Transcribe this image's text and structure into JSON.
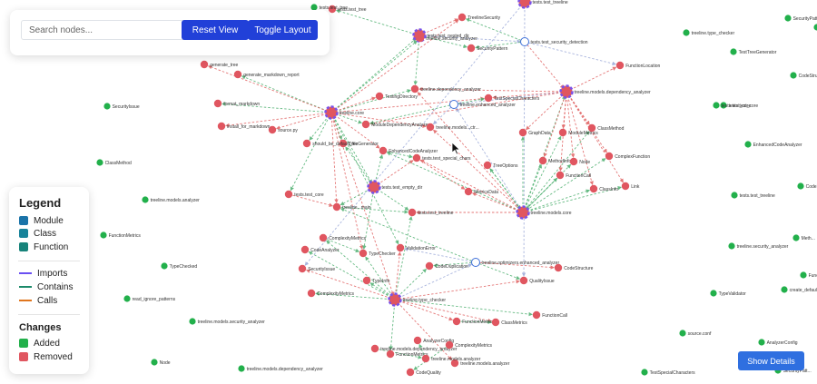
{
  "controls": {
    "search_placeholder": "Search nodes...",
    "reset_label": "Reset View",
    "toggle_label": "Toggle Layout"
  },
  "legend": {
    "title": "Legend",
    "node_types": [
      {
        "label": "Module",
        "color": "#1a73a8"
      },
      {
        "label": "Class",
        "color": "#18839a"
      },
      {
        "label": "Function",
        "color": "#17837a"
      }
    ],
    "edge_types": [
      {
        "label": "Imports",
        "color": "#6a4ff2"
      },
      {
        "label": "Contains",
        "color": "#1c8a6a"
      },
      {
        "label": "Calls",
        "color": "#e0761e"
      }
    ],
    "changes_title": "Changes",
    "changes": [
      {
        "label": "Added",
        "color": "#22b04b"
      },
      {
        "label": "Removed",
        "color": "#e05660"
      }
    ]
  },
  "details_button": "Show Details",
  "colors": {
    "added": "#22b04b",
    "removed": "#e05660",
    "edge_green": "#4caf6e",
    "edge_red": "#e06060",
    "edge_blue": "#9aa8d8",
    "hub_purple": "#7a52e8",
    "accent_button": "#2140d8"
  },
  "graph": {
    "nodes": [
      {
        "id": "h1",
        "label": "treeline.core",
        "type": "hub"
      },
      {
        "id": "h2",
        "label": "tests.test_empty_dir",
        "type": "hub"
      },
      {
        "id": "h3",
        "label": "treeline.models.core",
        "type": "hub"
      },
      {
        "id": "h4",
        "label": "treeline.models.dependency_analyzer",
        "type": "hub"
      },
      {
        "id": "h5",
        "label": "treeline.type_checker",
        "type": "hub"
      },
      {
        "id": "h6",
        "label": "tests.test_nested_dir",
        "type": "hub"
      },
      {
        "id": "h7",
        "label": "tests.test_treeline",
        "type": "hub"
      },
      {
        "id": "w1",
        "label": "tests.test_security_detection",
        "type": "white"
      },
      {
        "id": "w2",
        "label": "treeline.enhanced_analyzer",
        "type": "white"
      },
      {
        "id": "w3",
        "label": "treeline.optimizers.enhanced_analyzer",
        "type": "white"
      },
      {
        "id": "r1",
        "label": "TreelineSecurity",
        "type": "removed"
      },
      {
        "id": "r2",
        "label": "treeline.security_analyzer",
        "type": "removed"
      },
      {
        "id": "r3",
        "label": "SecurityPattern",
        "type": "removed"
      },
      {
        "id": "r4",
        "label": "tests.test_tree",
        "type": "removed"
      },
      {
        "id": "r5",
        "label": "treeline.dependency_analyzer",
        "type": "removed"
      },
      {
        "id": "r6",
        "label": "TestSpecialCharacters",
        "type": "removed"
      },
      {
        "id": "r7",
        "label": "TestingDirectory",
        "type": "removed"
      },
      {
        "id": "r8",
        "label": "ModuleDependencyAnalyzer",
        "type": "removed"
      },
      {
        "id": "r9",
        "label": "treeline.models...ctr...",
        "type": "removed"
      },
      {
        "id": "r10",
        "label": "EnhancedCodeAnalyzer",
        "type": "removed"
      },
      {
        "id": "r11",
        "label": "tests.test_special_chars",
        "type": "removed"
      },
      {
        "id": "r12",
        "label": "TreeOptions",
        "type": "removed"
      },
      {
        "id": "r13",
        "label": "TreeGenerator",
        "type": "removed"
      },
      {
        "id": "r14",
        "label": "source.py",
        "type": "removed"
      },
      {
        "id": "r15",
        "label": "install_for_markdown",
        "type": "removed"
      },
      {
        "id": "r16",
        "label": "format_markdown",
        "type": "removed"
      },
      {
        "id": "r17",
        "label": "generate_markdown_report",
        "type": "removed"
      },
      {
        "id": "r18",
        "label": "generate_tree",
        "type": "removed"
      },
      {
        "id": "r19",
        "label": "should_be_default_file",
        "type": "removed"
      },
      {
        "id": "r20",
        "label": "tests.test_core",
        "type": "removed"
      },
      {
        "id": "r21",
        "label": "treeline...main",
        "type": "removed"
      },
      {
        "id": "r22",
        "label": "tests.test_treeline",
        "type": "removed"
      },
      {
        "id": "r23",
        "label": "ComplexityMetrics",
        "type": "removed"
      },
      {
        "id": "r24",
        "label": "GraphData",
        "type": "removed"
      },
      {
        "id": "r25",
        "label": "ModuleMetrics",
        "type": "removed"
      },
      {
        "id": "r26",
        "label": "ClassMethod",
        "type": "removed"
      },
      {
        "id": "r27",
        "label": "MethodInfo",
        "type": "removed"
      },
      {
        "id": "r28",
        "label": "Node",
        "type": "removed"
      },
      {
        "id": "r29",
        "label": "ComplexFunction",
        "type": "removed"
      },
      {
        "id": "r30",
        "label": "FunctionCall",
        "type": "removed"
      },
      {
        "id": "r31",
        "label": "ClassInfo",
        "type": "removed"
      },
      {
        "id": "r32",
        "label": "Link",
        "type": "removed"
      },
      {
        "id": "r33",
        "label": "FunctionLocation",
        "type": "removed"
      },
      {
        "id": "r34",
        "label": "ValidationError",
        "type": "removed"
      },
      {
        "id": "r35",
        "label": "TypeChecker",
        "type": "removed"
      },
      {
        "id": "r36",
        "label": "CodeDuplication",
        "type": "removed"
      },
      {
        "id": "r37",
        "label": "CodeStructure",
        "type": "removed"
      },
      {
        "id": "r38",
        "label": "QualityIssue",
        "type": "removed"
      },
      {
        "id": "r39",
        "label": "FunctionMetrics",
        "type": "removed"
      },
      {
        "id": "r40",
        "label": "ClassMetrics",
        "type": "removed"
      },
      {
        "id": "r41",
        "label": "FunctionCall",
        "type": "removed"
      },
      {
        "id": "r42",
        "label": "treeline.models.analyzer",
        "type": "removed"
      },
      {
        "id": "r43",
        "label": "SecurityIssue",
        "type": "removed"
      },
      {
        "id": "r44",
        "label": "ComplexityMetrics",
        "type": "removed"
      },
      {
        "id": "r45",
        "label": "TypeInfo",
        "type": "removed"
      },
      {
        "id": "r46",
        "label": "CodeAnalyzer",
        "type": "removed"
      },
      {
        "id": "r47",
        "label": "MetricsData",
        "type": "removed"
      },
      {
        "id": "r48",
        "label": "FunctionMetrics",
        "type": "removed"
      },
      {
        "id": "r49",
        "label": "treeline.models.dependency_analyzer",
        "type": "removed"
      },
      {
        "id": "r50",
        "label": "treeline.models.analyzer",
        "type": "removed"
      },
      {
        "id": "r51",
        "label": "AnalyzerConfig",
        "type": "removed"
      },
      {
        "id": "r52",
        "label": "ComplexityMetrics",
        "type": "removed"
      },
      {
        "id": "r53",
        "label": "CodeQuality",
        "type": "removed"
      },
      {
        "id": "a1",
        "label": "treeline.type_checker",
        "type": "added"
      },
      {
        "id": "a2",
        "label": "TestTreeGenerator",
        "type": "added"
      },
      {
        "id": "a3",
        "label": "CodeStructure",
        "type": "added"
      },
      {
        "id": "a4",
        "label": "SecurityPattern",
        "type": "added"
      },
      {
        "id": "a5",
        "label": "TreelineSecurity",
        "type": "added"
      },
      {
        "id": "a6",
        "label": "tests.test_core",
        "type": "added"
      },
      {
        "id": "a7",
        "label": "EnhancedCodeAnalyzer",
        "type": "added"
      },
      {
        "id": "a8",
        "label": "SecurityIssue",
        "type": "added"
      },
      {
        "id": "a9",
        "label": "ClassMethod",
        "type": "added"
      },
      {
        "id": "a10",
        "label": "treeline.models.analyzer",
        "type": "added"
      },
      {
        "id": "a11",
        "label": "FunctionMetrics",
        "type": "added"
      },
      {
        "id": "a12",
        "label": "TypeChecked",
        "type": "added"
      },
      {
        "id": "a13",
        "label": "read_ignore_patterns",
        "type": "added"
      },
      {
        "id": "a14",
        "label": "treeline.models.security_analyzer",
        "type": "added"
      },
      {
        "id": "a15",
        "label": "Node",
        "type": "added"
      },
      {
        "id": "a16",
        "label": "treeline.models.dependency_analyzer",
        "type": "added"
      },
      {
        "id": "a17",
        "label": "tests.test_treeline",
        "type": "added"
      },
      {
        "id": "a18",
        "label": "treeline.security_analyzer",
        "type": "added"
      },
      {
        "id": "a19",
        "label": "TypeValidator",
        "type": "added"
      },
      {
        "id": "a20",
        "label": "create_default_ignore",
        "type": "added"
      },
      {
        "id": "a21",
        "label": "source.conf",
        "type": "added"
      },
      {
        "id": "a22",
        "label": "AnalyzerConfig",
        "type": "added"
      },
      {
        "id": "a23",
        "label": "TestSpecialCharacters",
        "type": "added"
      },
      {
        "id": "a24",
        "label": "SecurityPatt...",
        "type": "added"
      },
      {
        "id": "a25",
        "label": "Meth...",
        "type": "added"
      },
      {
        "id": "a26",
        "label": "CodeSh...",
        "type": "added"
      },
      {
        "id": "a27",
        "label": "Func...",
        "type": "added"
      },
      {
        "id": "a28",
        "label": "tests.test_tree",
        "type": "added"
      },
      {
        "id": "a29",
        "label": "tests.test_core",
        "type": "added"
      }
    ],
    "edges": [
      [
        "h1",
        "r5",
        "g"
      ],
      [
        "h1",
        "r7",
        "r"
      ],
      [
        "h1",
        "r8",
        "g"
      ],
      [
        "h1",
        "r13",
        "g"
      ],
      [
        "h1",
        "r14",
        "r"
      ],
      [
        "h1",
        "r15",
        "r"
      ],
      [
        "h1",
        "r16",
        "g"
      ],
      [
        "h1",
        "r17",
        "g"
      ],
      [
        "h1",
        "r18",
        "r"
      ],
      [
        "h1",
        "r19",
        "g"
      ],
      [
        "h1",
        "h2",
        "g"
      ],
      [
        "h1",
        "r21",
        "r"
      ],
      [
        "h1",
        "r6",
        "r"
      ],
      [
        "h1",
        "r2",
        "g"
      ],
      [
        "h1",
        "r9",
        "r"
      ],
      [
        "h1",
        "r10",
        "r"
      ],
      [
        "h1",
        "h5",
        "r"
      ],
      [
        "h1",
        "r34",
        "g"
      ],
      [
        "h1",
        "r35",
        "r"
      ],
      [
        "h1",
        "r20",
        "g"
      ],
      [
        "h1",
        "h6",
        "g"
      ],
      [
        "h1",
        "r1",
        "r"
      ],
      [
        "h2",
        "r11",
        "r"
      ],
      [
        "h2",
        "r21",
        "g"
      ],
      [
        "h2",
        "r22",
        "g"
      ],
      [
        "h2",
        "r10",
        "g"
      ],
      [
        "h2",
        "r35",
        "g"
      ],
      [
        "h2",
        "r13",
        "g"
      ],
      [
        "h3",
        "r9",
        "r"
      ],
      [
        "h3",
        "r10",
        "g"
      ],
      [
        "h3",
        "r11",
        "r"
      ],
      [
        "h3",
        "r12",
        "g"
      ],
      [
        "h3",
        "r24",
        "g"
      ],
      [
        "h3",
        "r25",
        "g"
      ],
      [
        "h3",
        "r26",
        "g"
      ],
      [
        "h3",
        "r27",
        "g"
      ],
      [
        "h3",
        "r28",
        "g"
      ],
      [
        "h3",
        "r29",
        "g"
      ],
      [
        "h3",
        "r30",
        "g"
      ],
      [
        "h3",
        "r31",
        "g"
      ],
      [
        "h3",
        "r32",
        "g"
      ],
      [
        "h3",
        "r22",
        "r"
      ],
      [
        "h3",
        "w2",
        "b"
      ],
      [
        "h3",
        "r47",
        "r"
      ],
      [
        "h3",
        "h4",
        "g"
      ],
      [
        "h3",
        "r5",
        "r"
      ],
      [
        "h4",
        "r5",
        "r"
      ],
      [
        "h4",
        "r6",
        "r"
      ],
      [
        "h4",
        "r24",
        "r"
      ],
      [
        "h4",
        "r25",
        "r"
      ],
      [
        "h4",
        "r26",
        "r"
      ],
      [
        "h4",
        "r27",
        "r"
      ],
      [
        "h4",
        "r28",
        "r"
      ],
      [
        "h4",
        "r29",
        "r"
      ],
      [
        "h4",
        "r30",
        "r"
      ],
      [
        "h4",
        "r31",
        "r"
      ],
      [
        "h4",
        "r32",
        "r"
      ],
      [
        "h4",
        "r33",
        "r"
      ],
      [
        "h4",
        "w2",
        "b"
      ],
      [
        "h4",
        "r8",
        "r"
      ],
      [
        "h5",
        "r39",
        "r"
      ],
      [
        "h5",
        "r40",
        "r"
      ],
      [
        "h5",
        "r41",
        "g"
      ],
      [
        "h5",
        "r42",
        "r"
      ],
      [
        "h5",
        "r44",
        "g"
      ],
      [
        "h5",
        "r45",
        "g"
      ],
      [
        "h5",
        "r46",
        "g"
      ],
      [
        "h5",
        "r48",
        "g"
      ],
      [
        "h5",
        "r35",
        "g"
      ],
      [
        "h5",
        "r34",
        "r"
      ],
      [
        "h5",
        "r36",
        "g"
      ],
      [
        "h5",
        "w3",
        "b"
      ],
      [
        "h5",
        "r23",
        "g"
      ],
      [
        "h5",
        "r43",
        "r"
      ],
      [
        "h5",
        "r38",
        "r"
      ],
      [
        "h5",
        "r22",
        "g"
      ],
      [
        "h6",
        "r1",
        "r"
      ],
      [
        "h6",
        "r2",
        "g"
      ],
      [
        "h6",
        "r3",
        "g"
      ],
      [
        "h6",
        "w1",
        "b"
      ],
      [
        "h6",
        "r4",
        "g"
      ],
      [
        "h6",
        "r5",
        "g"
      ],
      [
        "w1",
        "r1",
        "g"
      ],
      [
        "w1",
        "r3",
        "g"
      ],
      [
        "w1",
        "h4",
        "r"
      ],
      [
        "w1",
        "r33",
        "b"
      ],
      [
        "w2",
        "r9",
        "b"
      ],
      [
        "w2",
        "r8",
        "g"
      ],
      [
        "w2",
        "r6",
        "g"
      ],
      [
        "w3",
        "r36",
        "g"
      ],
      [
        "w3",
        "r37",
        "r"
      ],
      [
        "w3",
        "r38",
        "g"
      ],
      [
        "w3",
        "r34",
        "b"
      ],
      [
        "w3",
        "r21",
        "g"
      ],
      [
        "r21",
        "r22",
        "g"
      ],
      [
        "r20",
        "r21",
        "r"
      ],
      [
        "r23",
        "r35",
        "g"
      ],
      [
        "r39",
        "r40",
        "g"
      ],
      [
        "r10",
        "r11",
        "g"
      ],
      [
        "r12",
        "h3",
        "g"
      ],
      [
        "r11",
        "r47",
        "r"
      ],
      [
        "r49",
        "r50",
        "g"
      ],
      [
        "r52",
        "r53",
        "g"
      ],
      [
        "h7",
        "r43",
        "b"
      ],
      [
        "h7",
        "r38",
        "b"
      ],
      [
        "r50",
        "r51",
        "g"
      ],
      [
        "r30",
        "h3",
        "g"
      ]
    ]
  }
}
